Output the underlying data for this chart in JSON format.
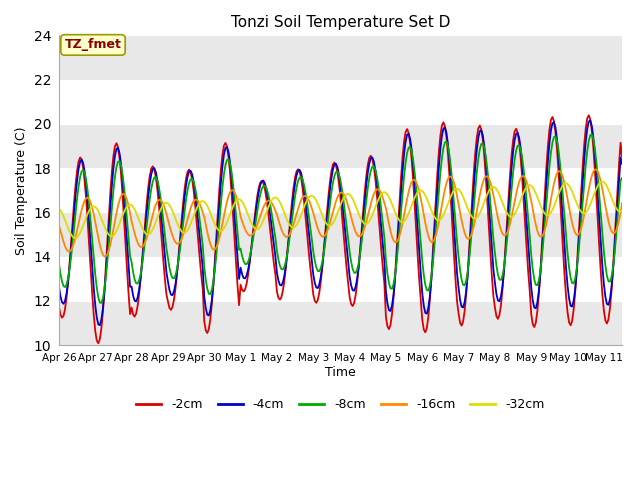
{
  "title": "Tonzi Soil Temperature Set D",
  "xlabel": "Time",
  "ylabel": "Soil Temperature (C)",
  "ylim": [
    10,
    24
  ],
  "background_color": "#ffffff",
  "plot_bg_color": "#ffffff",
  "legend_label": "TZ_fmet",
  "series_labels": [
    "-2cm",
    "-4cm",
    "-8cm",
    "-16cm",
    "-32cm"
  ],
  "series_colors": [
    "#dd0000",
    "#0000cc",
    "#00aa00",
    "#ff8800",
    "#dddd00"
  ],
  "tick_labels": [
    "Apr 26",
    "Apr 27",
    "Apr 28",
    "Apr 29",
    "Apr 30",
    "May 1",
    "May 2",
    "May 3",
    "May 4",
    "May 5",
    "May 6",
    "May 7",
    "May 8",
    "May 9",
    "May 10",
    "May 11"
  ],
  "yticks": [
    10,
    12,
    14,
    16,
    18,
    20,
    22,
    24
  ],
  "grid_colors": [
    "#e8e8e8",
    "#ffffff"
  ],
  "figsize": [
    6.4,
    4.8
  ],
  "dpi": 100
}
